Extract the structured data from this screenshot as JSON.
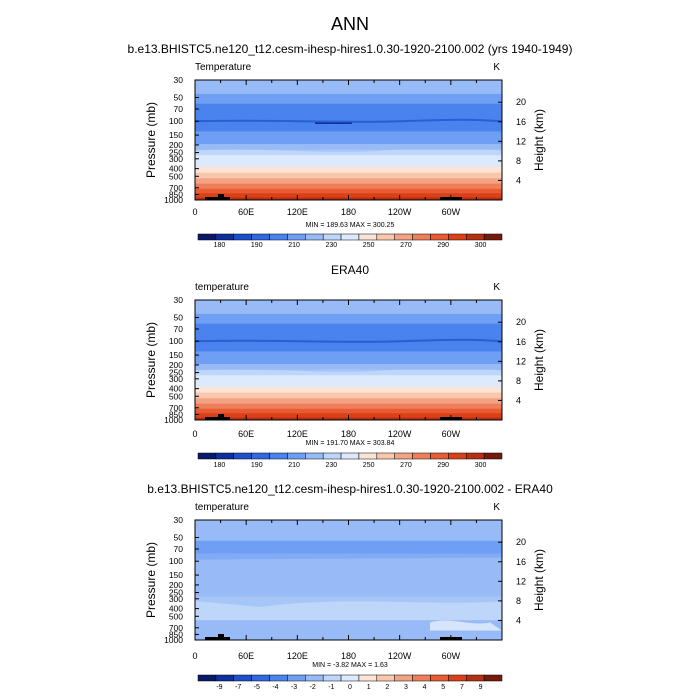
{
  "title": "ANN",
  "colors": {
    "temp_bar": [
      "#0a1a6b",
      "#0f2f9c",
      "#1d4fcb",
      "#2f68e0",
      "#4a83ee",
      "#6f9ff4",
      "#98bbf7",
      "#bed6fa",
      "#dde9fc",
      "#fbe3d6",
      "#f9c8ac",
      "#f3a383",
      "#ee7f5a",
      "#e85b34",
      "#db4118",
      "#b53013",
      "#761a0e"
    ],
    "diff_bar": [
      "#0a1a6b",
      "#0f2f9c",
      "#1d4fcb",
      "#2f68e0",
      "#4a83ee",
      "#6f9ff4",
      "#98bbf7",
      "#bed6fa",
      "#dde9fc",
      "#fbe3d6",
      "#f9c8ac",
      "#f3a383",
      "#ee7f5a",
      "#e85b34",
      "#db4118",
      "#b53013",
      "#761a0e"
    ]
  },
  "chart_data": [
    {
      "type": "heatmap",
      "title": "b.e13.BHISTC5.ne120_t12.cesm-ihesp-hires1.0.30-1920-2100.002 (yrs 1940-1949)",
      "left_label": "Temperature",
      "right_label": "K",
      "ylabel": "Pressure (mb)",
      "y2label": "Height (km)",
      "x_ticks": [
        "0",
        "60E",
        "120E",
        "180",
        "120W",
        "60W"
      ],
      "pressure_ticks": [
        "30",
        "50",
        "70",
        "100",
        "150",
        "200",
        "250",
        "300",
        "400",
        "500",
        "700",
        "850",
        "1000"
      ],
      "height_ticks": [
        "20",
        "16",
        "12",
        "8",
        "4"
      ],
      "stats": "MIN = 189.63   MAX = 300.25",
      "colorbar_labels": [
        "180",
        "190",
        "210",
        "230",
        "250",
        "270",
        "290",
        "300"
      ],
      "bands": [
        {
          "p_top": 30,
          "p_bot": 45,
          "value": 220
        },
        {
          "p_top": 45,
          "p_bot": 60,
          "value": 214
        },
        {
          "p_top": 60,
          "p_bot": 80,
          "value": 208
        },
        {
          "p_top": 80,
          "p_bot": 110,
          "value": 202
        },
        {
          "p_top": 110,
          "p_bot": 135,
          "value": 206
        },
        {
          "p_top": 135,
          "p_bot": 165,
          "value": 212
        },
        {
          "p_top": 165,
          "p_bot": 195,
          "value": 218
        },
        {
          "p_top": 195,
          "p_bot": 230,
          "value": 224
        },
        {
          "p_top": 230,
          "p_bot": 270,
          "value": 232
        },
        {
          "p_top": 270,
          "p_bot": 320,
          "value": 240
        },
        {
          "p_top": 320,
          "p_bot": 380,
          "value": 248
        },
        {
          "p_top": 380,
          "p_bot": 450,
          "value": 255
        },
        {
          "p_top": 450,
          "p_bot": 530,
          "value": 262
        },
        {
          "p_top": 530,
          "p_bot": 620,
          "value": 268
        },
        {
          "p_top": 620,
          "p_bot": 720,
          "value": 274
        },
        {
          "p_top": 720,
          "p_bot": 820,
          "value": 280
        },
        {
          "p_top": 820,
          "p_bot": 930,
          "value": 286
        },
        {
          "p_top": 930,
          "p_bot": 1000,
          "value": 292
        }
      ]
    },
    {
      "type": "heatmap",
      "title": "ERA40",
      "left_label": "temperature",
      "right_label": "K",
      "ylabel": "Pressure (mb)",
      "y2label": "Height (km)",
      "x_ticks": [
        "0",
        "60E",
        "120E",
        "180",
        "120W",
        "60W"
      ],
      "pressure_ticks": [
        "30",
        "50",
        "70",
        "100",
        "150",
        "200",
        "250",
        "300",
        "400",
        "500",
        "700",
        "850",
        "1000"
      ],
      "height_ticks": [
        "20",
        "16",
        "12",
        "8",
        "4"
      ],
      "stats": "MIN = 191.70   MAX = 303.84",
      "colorbar_labels": [
        "180",
        "190",
        "210",
        "230",
        "250",
        "270",
        "290",
        "300"
      ],
      "bands": [
        {
          "p_top": 30,
          "p_bot": 45,
          "value": 222
        },
        {
          "p_top": 45,
          "p_bot": 60,
          "value": 215
        },
        {
          "p_top": 60,
          "p_bot": 80,
          "value": 209
        },
        {
          "p_top": 80,
          "p_bot": 110,
          "value": 203
        },
        {
          "p_top": 110,
          "p_bot": 135,
          "value": 207
        },
        {
          "p_top": 135,
          "p_bot": 165,
          "value": 213
        },
        {
          "p_top": 165,
          "p_bot": 195,
          "value": 219
        },
        {
          "p_top": 195,
          "p_bot": 230,
          "value": 226
        },
        {
          "p_top": 230,
          "p_bot": 270,
          "value": 234
        },
        {
          "p_top": 270,
          "p_bot": 320,
          "value": 242
        },
        {
          "p_top": 320,
          "p_bot": 380,
          "value": 249
        },
        {
          "p_top": 380,
          "p_bot": 450,
          "value": 256
        },
        {
          "p_top": 450,
          "p_bot": 530,
          "value": 263
        },
        {
          "p_top": 530,
          "p_bot": 620,
          "value": 269
        },
        {
          "p_top": 620,
          "p_bot": 720,
          "value": 275
        },
        {
          "p_top": 720,
          "p_bot": 820,
          "value": 282
        },
        {
          "p_top": 820,
          "p_bot": 930,
          "value": 288
        },
        {
          "p_top": 930,
          "p_bot": 1000,
          "value": 294
        }
      ]
    },
    {
      "type": "heatmap",
      "title": "b.e13.BHISTC5.ne120_t12.cesm-ihesp-hires1.0.30-1920-2100.002 - ERA40",
      "left_label": "temperature",
      "right_label": "K",
      "ylabel": "Pressure (mb)",
      "y2label": "Height (km)",
      "x_ticks": [
        "0",
        "60E",
        "120E",
        "180",
        "120W",
        "60W"
      ],
      "pressure_ticks": [
        "30",
        "50",
        "70",
        "100",
        "150",
        "200",
        "250",
        "300",
        "400",
        "500",
        "700",
        "850",
        "1000"
      ],
      "height_ticks": [
        "20",
        "16",
        "12",
        "8",
        "4"
      ],
      "stats": "MIN = -3.82   MAX =  1.63",
      "colorbar_labels": [
        "-9",
        "-7",
        "-5",
        "-4",
        "-3",
        "-2",
        "-1",
        "0",
        "1",
        "2",
        "3",
        "4",
        "5",
        "7",
        "9"
      ],
      "bands": [
        {
          "p_top": 30,
          "p_bot": 55,
          "value": -1.5
        },
        {
          "p_top": 55,
          "p_bot": 68,
          "value": -2.5
        },
        {
          "p_top": 68,
          "p_bot": 80,
          "value": -3.0
        },
        {
          "p_top": 80,
          "p_bot": 120,
          "value": -2.0
        },
        {
          "p_top": 120,
          "p_bot": 180,
          "value": -1.5
        },
        {
          "p_top": 180,
          "p_bot": 280,
          "value": -2.0
        },
        {
          "p_top": 280,
          "p_bot": 560,
          "value": -0.8
        },
        {
          "p_top": 560,
          "p_bot": 700,
          "value": -1.2
        },
        {
          "p_top": 700,
          "p_bot": 850,
          "value": -1.5
        },
        {
          "p_top": 850,
          "p_bot": 1000,
          "value": -1.2
        }
      ]
    }
  ]
}
